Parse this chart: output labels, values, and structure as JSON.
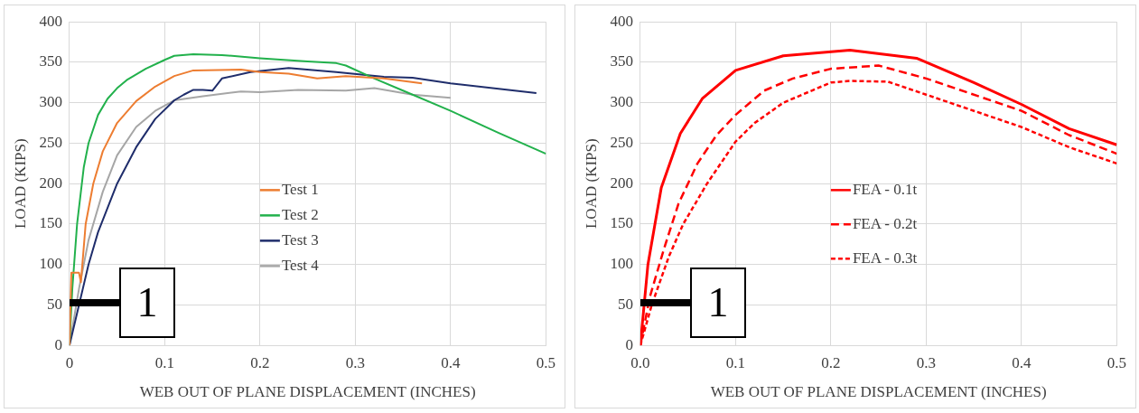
{
  "chart_data": [
    {
      "type": "line",
      "xlabel": "WEB OUT OF PLANE DISPLACEMENT (INCHES)",
      "ylabel": "LOAD (KIPS)",
      "xlim": [
        0,
        0.5
      ],
      "xticks": [
        0,
        0.1,
        0.2,
        0.3,
        0.4,
        0.5
      ],
      "ylim": [
        0,
        400
      ],
      "yticks": [
        0,
        50,
        100,
        150,
        200,
        250,
        300,
        350,
        400
      ],
      "grid": true,
      "legend": "center",
      "marker": "none",
      "line_style": "solid",
      "annotations": [
        {
          "text": "1",
          "x": 0,
          "y": 65
        }
      ],
      "series": [
        {
          "name": "Test 1",
          "color": "#ed7d31",
          "x": [
            0,
            0.002,
            0.01,
            0.012,
            0.017,
            0.025,
            0.035,
            0.05,
            0.07,
            0.09,
            0.11,
            0.13,
            0.18,
            0.2,
            0.23,
            0.26,
            0.29,
            0.33,
            0.37
          ],
          "values": [
            0,
            90,
            90,
            78,
            150,
            200,
            240,
            275,
            302,
            320,
            333,
            340,
            341,
            338,
            336,
            330,
            333,
            330,
            324
          ]
        },
        {
          "name": "Test 2",
          "color": "#22b14c",
          "x": [
            0,
            0.003,
            0.008,
            0.015,
            0.02,
            0.03,
            0.04,
            0.05,
            0.06,
            0.08,
            0.1,
            0.11,
            0.13,
            0.16,
            0.2,
            0.25,
            0.28,
            0.29,
            0.32,
            0.35,
            0.4,
            0.45,
            0.5
          ],
          "values": [
            0,
            70,
            150,
            220,
            250,
            285,
            305,
            318,
            328,
            342,
            353,
            358,
            360,
            359,
            355,
            351,
            349,
            346,
            330,
            315,
            290,
            263,
            237
          ]
        },
        {
          "name": "Test 3",
          "color": "#1f2d6b",
          "x": [
            0,
            0.01,
            0.02,
            0.03,
            0.05,
            0.07,
            0.09,
            0.11,
            0.12,
            0.13,
            0.14,
            0.15,
            0.16,
            0.19,
            0.23,
            0.28,
            0.33,
            0.36,
            0.4,
            0.49
          ],
          "values": [
            0,
            50,
            100,
            140,
            200,
            245,
            280,
            303,
            310,
            316,
            316,
            315,
            330,
            338,
            343,
            338,
            332,
            331,
            324,
            312
          ]
        },
        {
          "name": "Test 4",
          "color": "#a6a6a6",
          "x": [
            0,
            0.01,
            0.02,
            0.035,
            0.05,
            0.07,
            0.09,
            0.11,
            0.14,
            0.18,
            0.2,
            0.24,
            0.29,
            0.32,
            0.36,
            0.38,
            0.4
          ],
          "values": [
            0,
            70,
            130,
            190,
            235,
            270,
            290,
            303,
            308,
            314,
            313,
            316,
            315,
            318,
            310,
            308,
            306
          ]
        }
      ]
    },
    {
      "type": "line",
      "xlabel": "WEB OUT OF PLANE DISPLACEMENT (INCHES)",
      "ylabel": "LOAD (KIPS)",
      "xlim": [
        0,
        0.5
      ],
      "xticks": [
        {
          "value": 0,
          "label": "0.0"
        },
        0.1,
        0.2,
        0.3,
        0.4,
        0.5
      ],
      "ylim": [
        0,
        400
      ],
      "yticks": [
        0,
        50,
        100,
        150,
        200,
        250,
        300,
        350,
        400
      ],
      "grid": true,
      "legend": "center",
      "marker": "none",
      "annotations": [
        {
          "text": "1",
          "x": 0,
          "y": 65
        }
      ],
      "series": [
        {
          "name": "FEA - 0.1t",
          "color": "#ff0000",
          "line_style": "solid",
          "x": [
            0,
            0.008,
            0.022,
            0.042,
            0.065,
            0.1,
            0.15,
            0.22,
            0.29,
            0.35,
            0.4,
            0.45,
            0.5
          ],
          "values": [
            0,
            100,
            195,
            262,
            305,
            340,
            358,
            365,
            355,
            325,
            298,
            268,
            248
          ]
        },
        {
          "name": "FEA - 0.2t",
          "color": "#ff0000",
          "line_style": "dashed",
          "x": [
            0,
            0.01,
            0.025,
            0.04,
            0.06,
            0.08,
            0.1,
            0.13,
            0.16,
            0.2,
            0.25,
            0.3,
            0.4,
            0.45,
            0.5
          ],
          "values": [
            0,
            60,
            120,
            175,
            225,
            260,
            285,
            315,
            330,
            342,
            346,
            330,
            290,
            260,
            237
          ]
        },
        {
          "name": "FEA - 0.3t",
          "color": "#ff0000",
          "line_style": "dotted",
          "x": [
            0,
            0.012,
            0.03,
            0.045,
            0.07,
            0.1,
            0.12,
            0.15,
            0.2,
            0.22,
            0.26,
            0.3,
            0.4,
            0.45,
            0.5
          ],
          "values": [
            0,
            50,
            110,
            150,
            200,
            252,
            275,
            300,
            325,
            327,
            326,
            310,
            270,
            245,
            225
          ]
        }
      ]
    }
  ]
}
